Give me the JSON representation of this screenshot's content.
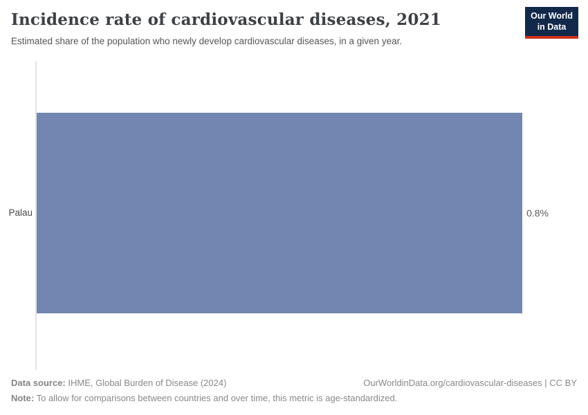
{
  "header": {
    "title": "Incidence rate of cardiovascular diseases, 2021",
    "subtitle": "Estimated share of the population who newly develop cardiovascular diseases, in a given year.",
    "logo": {
      "line1": "Our World",
      "line2": "in Data"
    }
  },
  "chart_data": {
    "type": "bar",
    "orientation": "horizontal",
    "title": "Incidence rate of cardiovascular diseases, 2021",
    "categories": [
      "Palau"
    ],
    "values": [
      0.8
    ],
    "value_labels": [
      "0.8%"
    ],
    "unit": "%",
    "xlabel": "",
    "ylabel": "",
    "xlim": [
      0,
      0.8
    ],
    "grid": false,
    "legend": false
  },
  "colors": {
    "bar": "#7286b1",
    "logo_background": "#12294b",
    "logo_accent": "#cf2d1d"
  },
  "footer": {
    "data_source_label": "Data source:",
    "data_source_text": "IHME, Global Burden of Disease (2024)",
    "url_license": "OurWorldinData.org/cardiovascular-diseases | CC BY",
    "note_label": "Note:",
    "note_text": "To allow for comparisons between countries and over time, this metric is age-standardized."
  }
}
